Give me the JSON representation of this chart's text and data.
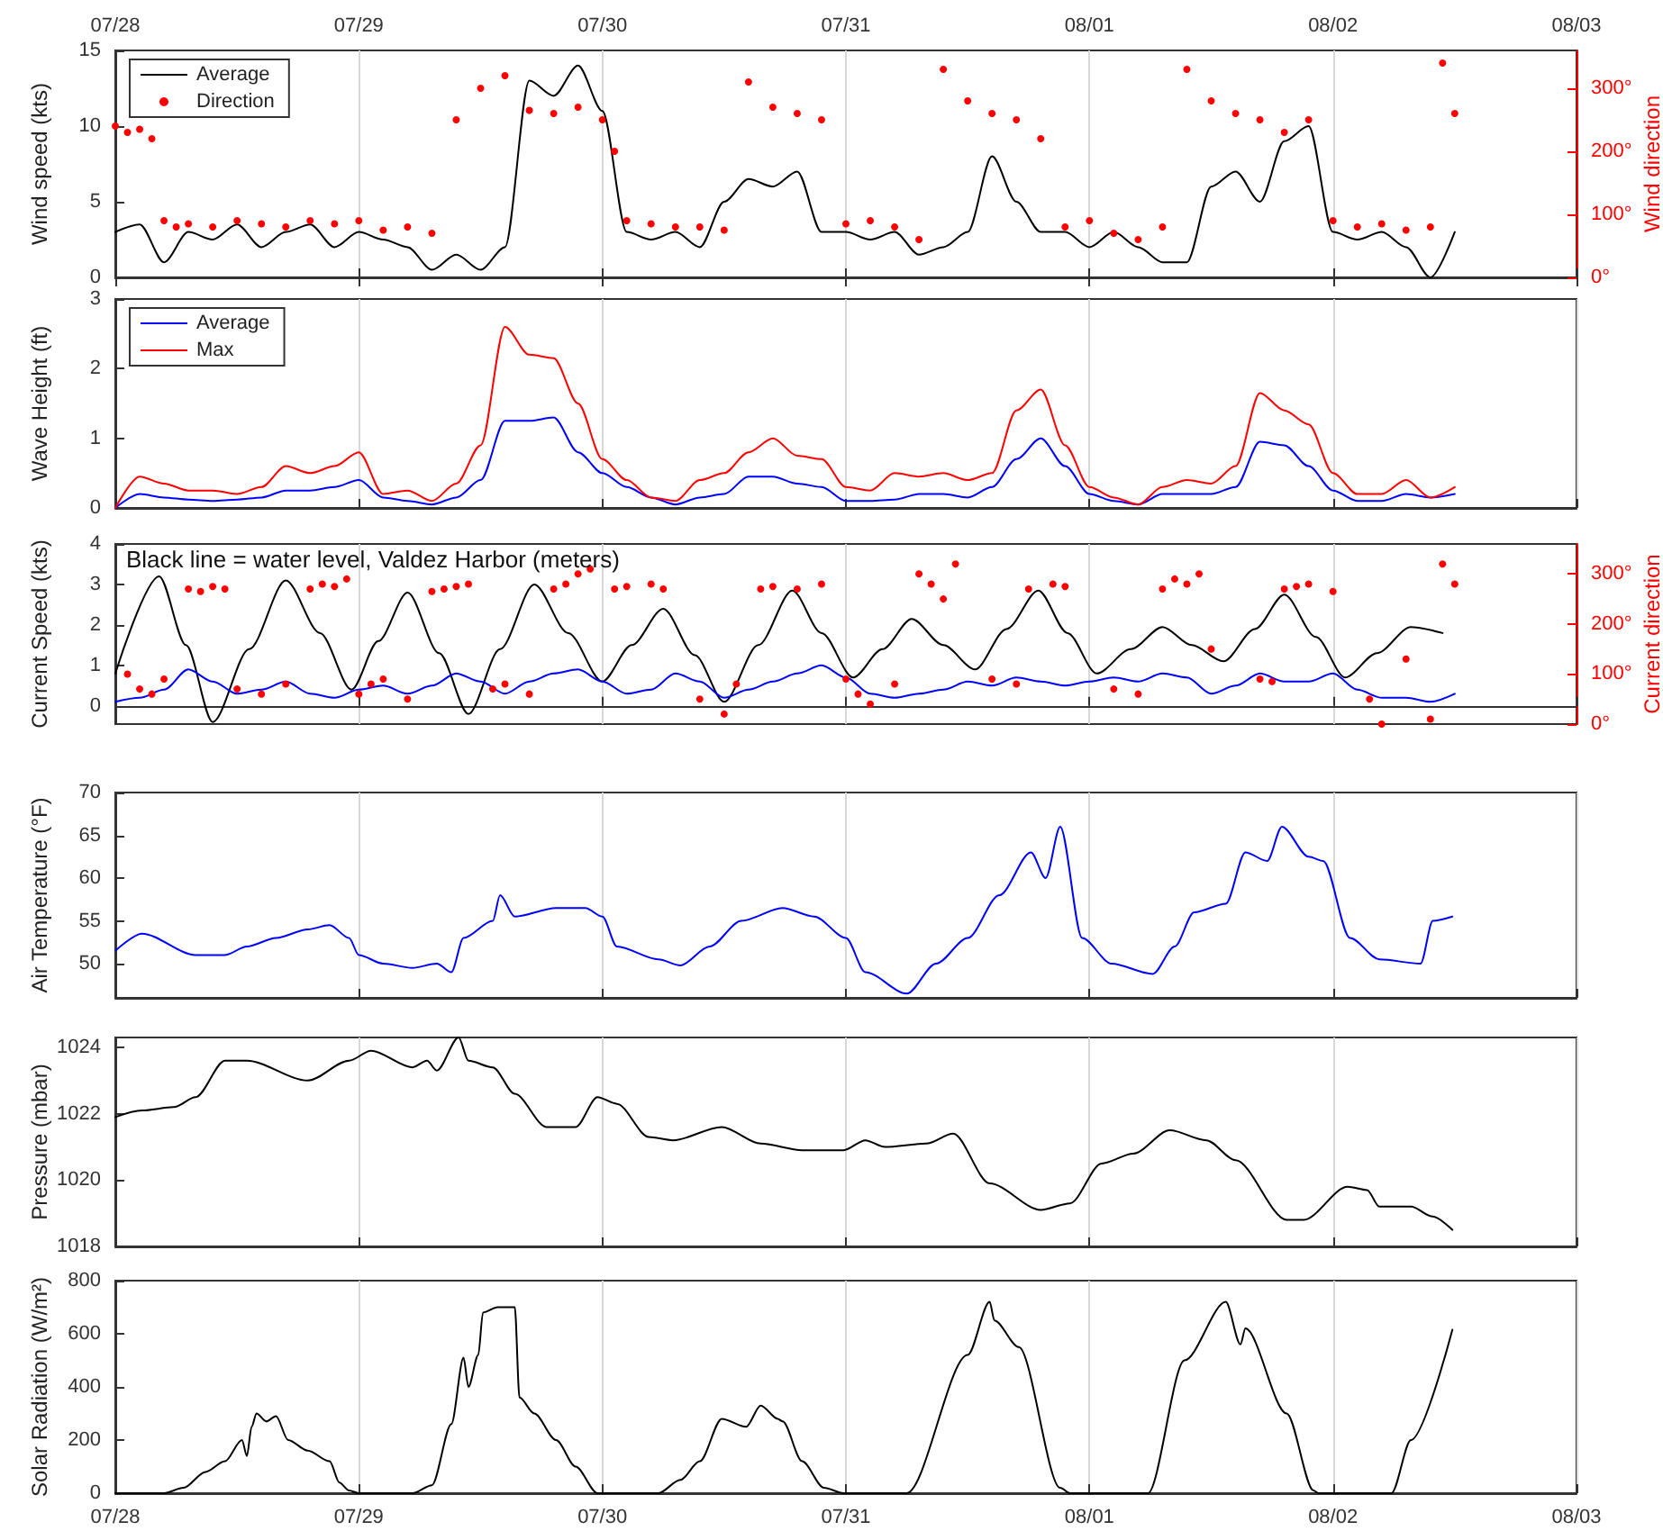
{
  "chart_data": [
    {
      "type": "line",
      "ylabel": "Wind speed (kts)",
      "y2label": "Wind direction",
      "xlim": [
        "--07-28",
        "--08-03"
      ],
      "xticks": [
        {
          "value": "--07-28",
          "label": null
        },
        {
          "value": "--07-29",
          "label": null
        },
        {
          "value": "--07-30",
          "label": null
        },
        {
          "value": "--07-31",
          "label": null
        },
        {
          "value": "--08-01",
          "label": null
        },
        {
          "value": "--08-02",
          "label": null
        },
        {
          "value": "--08-03",
          "label": null
        }
      ],
      "x2lim": [
        "--07-28",
        "--08-03"
      ],
      "x2ticks": [
        {
          "value": "--07-28",
          "label": "07/28"
        },
        {
          "value": "--07-29",
          "label": "07/29"
        },
        {
          "value": "--07-30",
          "label": "07/30"
        },
        {
          "value": "--07-31",
          "label": "07/31"
        },
        {
          "value": "--08-01",
          "label": "08/01"
        },
        {
          "value": "--08-02",
          "label": "08/02"
        },
        {
          "value": "--08-03",
          "label": "08/03"
        }
      ],
      "ylim": [
        0,
        15
      ],
      "yticks": [
        0,
        5,
        10,
        15
      ],
      "y2lim": [
        0,
        360
      ],
      "y2ticks": [
        {
          "value": 0,
          "label": "0°"
        },
        {
          "value": 100,
          "label": "100°"
        },
        {
          "value": 200,
          "label": "200°"
        },
        {
          "value": 300,
          "label": "300°"
        }
      ],
      "grid": "x",
      "legend": "top left",
      "tick_labels": "y",
      "x": [
        "--07-28T00:00",
        "--07-28T02:24",
        "--07-28T04:48",
        "--07-28T07:12",
        "--07-28T09:36",
        "--07-28T12:00",
        "--07-28T14:24",
        "--07-28T16:48",
        "--07-28T19:12",
        "--07-28T21:36",
        "--07-29T00:00",
        "--07-29T02:24",
        "--07-29T04:48",
        "--07-29T07:12",
        "--07-29T09:36",
        "--07-29T12:00",
        "--07-29T14:24",
        "--07-29T16:48",
        "--07-29T19:12",
        "--07-29T21:36",
        "--07-30T00:00",
        "--07-30T02:24",
        "--07-30T04:48",
        "--07-30T07:12",
        "--07-30T09:36",
        "--07-30T12:00",
        "--07-30T14:24",
        "--07-30T16:48",
        "--07-30T19:12",
        "--07-30T21:36",
        "--07-31T00:00",
        "--07-31T02:24",
        "--07-31T04:48",
        "--07-31T07:12",
        "--07-31T09:36",
        "--07-31T12:00",
        "--07-31T14:24",
        "--07-31T16:48",
        "--07-31T19:12",
        "--07-31T21:36",
        "--08-01T00:00",
        "--08-01T02:24",
        "--08-01T04:48",
        "--08-01T07:12",
        "--08-01T09:36",
        "--08-01T12:00",
        "--08-01T14:24",
        "--08-01T16:48",
        "--08-01T19:12",
        "--08-01T21:36",
        "--08-02T00:00",
        "--08-02T02:24",
        "--08-02T04:48",
        "--08-02T07:12",
        "--08-02T09:36",
        "--08-02T12:00"
      ],
      "series": [
        {
          "name": "Average",
          "color": "#000000",
          "values": [
            3,
            3.5,
            1,
            3,
            2.5,
            3.5,
            2,
            3,
            3.5,
            2,
            3,
            2.5,
            2,
            0.5,
            1.5,
            0.5,
            2,
            13,
            12,
            14,
            11,
            3,
            2.5,
            3,
            2,
            5,
            6.5,
            6,
            7,
            3,
            3,
            2.5,
            3,
            1.5,
            2,
            3,
            8,
            5,
            3,
            3,
            2,
            3,
            2,
            1,
            1,
            6,
            7,
            5,
            9,
            10,
            3,
            2.5,
            3,
            2,
            0,
            3
          ]
        },
        {
          "name": "Direction",
          "type": "scatter",
          "marker": "circle",
          "axis": "y2",
          "color": "#ff0000",
          "x": [
            "--07-28T00:00",
            "--07-28T01:12",
            "--07-28T02:24",
            "--07-28T03:36",
            "--07-28T04:48",
            "--07-28T06:00",
            "--07-28T07:12",
            "--07-28T09:36",
            "--07-28T12:00",
            "--07-28T14:24",
            "--07-28T16:48",
            "--07-28T19:12",
            "--07-28T21:36",
            "--07-29T00:00",
            "--07-29T02:24",
            "--07-29T04:48",
            "--07-29T07:12",
            "--07-29T09:36",
            "--07-29T12:00",
            "--07-29T14:24",
            "--07-29T16:48",
            "--07-29T19:12",
            "--07-29T21:36",
            "--07-30T00:00",
            "--07-30T01:12",
            "--07-30T02:24",
            "--07-30T04:48",
            "--07-30T07:12",
            "--07-30T09:36",
            "--07-30T12:00",
            "--07-30T14:24",
            "--07-30T16:48",
            "--07-30T19:12",
            "--07-30T21:36",
            "--07-31T00:00",
            "--07-31T02:24",
            "--07-31T04:48",
            "--07-31T07:12",
            "--07-31T09:36",
            "--07-31T12:00",
            "--07-31T14:24",
            "--07-31T16:48",
            "--07-31T19:12",
            "--07-31T21:36",
            "--08-01T00:00",
            "--08-01T02:24",
            "--08-01T04:48",
            "--08-01T07:12",
            "--08-01T09:36",
            "--08-01T12:00",
            "--08-01T14:24",
            "--08-01T16:48",
            "--08-01T19:12",
            "--08-01T21:36",
            "--08-02T00:00",
            "--08-02T02:24",
            "--08-02T04:48",
            "--08-02T07:12",
            "--08-02T09:36",
            "--08-02T10:48",
            "--08-02T12:00"
          ],
          "values": [
            240,
            230,
            235,
            220,
            90,
            80,
            85,
            80,
            90,
            85,
            80,
            90,
            85,
            90,
            75,
            80,
            70,
            250,
            300,
            320,
            265,
            260,
            270,
            250,
            200,
            90,
            85,
            80,
            80,
            75,
            310,
            270,
            260,
            250,
            85,
            90,
            80,
            60,
            330,
            280,
            260,
            250,
            220,
            80,
            90,
            70,
            60,
            80,
            330,
            280,
            260,
            250,
            230,
            250,
            90,
            80,
            85,
            75,
            80,
            340,
            260
          ]
        }
      ]
    },
    {
      "type": "line",
      "ylabel": "Wave Height (ft)",
      "xlim": [
        "--07-28",
        "--08-03"
      ],
      "xticks": [
        {
          "value": "--07-28",
          "label": null
        },
        {
          "value": "--07-29",
          "label": null
        },
        {
          "value": "--07-30",
          "label": null
        },
        {
          "value": "--07-31",
          "label": null
        },
        {
          "value": "--08-01",
          "label": null
        },
        {
          "value": "--08-02",
          "label": null
        },
        {
          "value": "--08-03",
          "label": null
        }
      ],
      "ylim": [
        0,
        3
      ],
      "yticks": [
        0,
        1,
        2,
        3
      ],
      "grid": "x",
      "legend": "top left",
      "tick_labels": "y",
      "x": [
        "--07-28T00:00",
        "--07-28T02:24",
        "--07-28T04:48",
        "--07-28T07:12",
        "--07-28T09:36",
        "--07-28T12:00",
        "--07-28T14:24",
        "--07-28T16:48",
        "--07-28T19:12",
        "--07-28T21:36",
        "--07-29T00:00",
        "--07-29T02:24",
        "--07-29T04:48",
        "--07-29T07:12",
        "--07-29T09:36",
        "--07-29T12:00",
        "--07-29T14:24",
        "--07-29T16:48",
        "--07-29T19:12",
        "--07-29T21:36",
        "--07-30T00:00",
        "--07-30T02:24",
        "--07-30T04:48",
        "--07-30T07:12",
        "--07-30T09:36",
        "--07-30T12:00",
        "--07-30T14:24",
        "--07-30T16:48",
        "--07-30T19:12",
        "--07-30T21:36",
        "--07-31T00:00",
        "--07-31T02:24",
        "--07-31T04:48",
        "--07-31T07:12",
        "--07-31T09:36",
        "--07-31T12:00",
        "--07-31T14:24",
        "--07-31T16:48",
        "--07-31T19:12",
        "--07-31T21:36",
        "--08-01T00:00",
        "--08-01T02:24",
        "--08-01T04:48",
        "--08-01T07:12",
        "--08-01T09:36",
        "--08-01T12:00",
        "--08-01T14:24",
        "--08-01T16:48",
        "--08-01T19:12",
        "--08-01T21:36",
        "--08-02T00:00",
        "--08-02T02:24",
        "--08-02T04:48",
        "--08-02T07:12",
        "--08-02T09:36",
        "--08-02T12:00"
      ],
      "series": [
        {
          "name": "Average",
          "color": "#0000ff",
          "values": [
            0,
            0.2,
            0.15,
            0.12,
            0.1,
            0.12,
            0.15,
            0.25,
            0.25,
            0.3,
            0.4,
            0.15,
            0.1,
            0.05,
            0.15,
            0.4,
            1.25,
            1.25,
            1.3,
            0.8,
            0.5,
            0.3,
            0.15,
            0.05,
            0.15,
            0.2,
            0.45,
            0.45,
            0.35,
            0.3,
            0.1,
            0.1,
            0.12,
            0.2,
            0.2,
            0.15,
            0.3,
            0.7,
            1.0,
            0.6,
            0.2,
            0.1,
            0.05,
            0.2,
            0.2,
            0.2,
            0.3,
            0.95,
            0.9,
            0.6,
            0.25,
            0.1,
            0.1,
            0.2,
            0.15,
            0.2
          ]
        },
        {
          "name": "Max",
          "color": "#ff0000",
          "values": [
            0,
            0.45,
            0.35,
            0.25,
            0.25,
            0.2,
            0.3,
            0.6,
            0.5,
            0.6,
            0.8,
            0.2,
            0.25,
            0.1,
            0.35,
            0.9,
            2.6,
            2.2,
            2.15,
            1.5,
            0.7,
            0.4,
            0.15,
            0.1,
            0.4,
            0.5,
            0.8,
            1.0,
            0.75,
            0.7,
            0.3,
            0.25,
            0.5,
            0.45,
            0.5,
            0.4,
            0.5,
            1.4,
            1.7,
            0.9,
            0.3,
            0.15,
            0.05,
            0.3,
            0.4,
            0.35,
            0.6,
            1.65,
            1.4,
            1.2,
            0.5,
            0.2,
            0.2,
            0.4,
            0.15,
            0.3
          ]
        }
      ]
    },
    {
      "type": "line",
      "ylabel": "Current Speed (kts)",
      "y2label": "Current direction",
      "annotations": [
        "Black line = water level, Valdez Harbor (meters)"
      ],
      "xlim": [
        "--07-28",
        "--08-03"
      ],
      "xticks": [
        {
          "value": "--07-28",
          "label": null
        },
        {
          "value": "--07-29",
          "label": null
        },
        {
          "value": "--07-30",
          "label": null
        },
        {
          "value": "--07-31",
          "label": null
        },
        {
          "value": "--08-01",
          "label": null
        },
        {
          "value": "--08-02",
          "label": null
        },
        {
          "value": "--08-03",
          "label": null
        }
      ],
      "ylim": [
        -0.45,
        4
      ],
      "yticks": [
        0,
        1,
        2,
        3,
        4
      ],
      "y2lim": [
        0,
        360
      ],
      "y2ticks": [
        {
          "value": 0,
          "label": "0°"
        },
        {
          "value": 100,
          "label": "100°"
        },
        {
          "value": 200,
          "label": "200°"
        },
        {
          "value": 300,
          "label": "300°"
        }
      ],
      "grid": "x",
      "tick_labels": "y",
      "x": [
        "--07-28T00:00",
        "--07-28T02:24",
        "--07-28T04:48",
        "--07-28T07:12",
        "--07-28T09:36",
        "--07-28T12:00",
        "--07-28T14:24",
        "--07-28T16:48",
        "--07-28T19:12",
        "--07-28T21:36",
        "--07-29T00:00",
        "--07-29T02:24",
        "--07-29T04:48",
        "--07-29T07:12",
        "--07-29T09:36",
        "--07-29T12:00",
        "--07-29T14:24",
        "--07-29T16:48",
        "--07-29T19:12",
        "--07-29T21:36",
        "--07-30T00:00",
        "--07-30T02:24",
        "--07-30T04:48",
        "--07-30T07:12",
        "--07-30T09:36",
        "--07-30T12:00",
        "--07-30T14:24",
        "--07-30T16:48",
        "--07-30T19:12",
        "--07-30T21:36",
        "--07-31T00:00",
        "--07-31T02:24",
        "--07-31T04:48",
        "--07-31T07:12",
        "--07-31T09:36",
        "--07-31T12:00",
        "--07-31T14:24",
        "--07-31T16:48",
        "--07-31T19:12",
        "--07-31T21:36",
        "--08-01T00:00",
        "--08-01T02:24",
        "--08-01T04:48",
        "--08-01T07:12",
        "--08-01T09:36",
        "--08-01T12:00",
        "--08-01T14:24",
        "--08-01T16:48",
        "--08-01T19:12",
        "--08-01T21:36",
        "--08-02T00:00",
        "--08-02T02:24",
        "--08-02T04:48",
        "--08-02T07:12",
        "--08-02T09:36",
        "--08-02T12:00"
      ],
      "series": [
        {
          "type": "scatter",
          "marker": "circle",
          "axis": "y2",
          "color": "#ff0000",
          "x": [
            "--07-28T01:12",
            "--07-28T02:24",
            "--07-28T03:36",
            "--07-28T04:48",
            "--07-28T07:12",
            "--07-28T08:24",
            "--07-28T09:36",
            "--07-28T10:48",
            "--07-28T12:00",
            "--07-28T14:24",
            "--07-28T16:48",
            "--07-28T19:12",
            "--07-28T20:24",
            "--07-28T21:36",
            "--07-28T22:48",
            "--07-29T00:00",
            "--07-29T01:12",
            "--07-29T02:24",
            "--07-29T04:48",
            "--07-29T07:12",
            "--07-29T08:24",
            "--07-29T09:36",
            "--07-29T10:48",
            "--07-29T13:12",
            "--07-29T14:24",
            "--07-29T16:48",
            "--07-29T19:12",
            "--07-29T20:24",
            "--07-29T21:36",
            "--07-29T22:48",
            "--07-30T01:12",
            "--07-30T02:24",
            "--07-30T04:48",
            "--07-30T06:00",
            "--07-30T09:36",
            "--07-30T12:00",
            "--07-30T13:12",
            "--07-30T15:36",
            "--07-30T16:48",
            "--07-30T19:12",
            "--07-30T21:36",
            "--07-31T00:00",
            "--07-31T01:12",
            "--07-31T02:24",
            "--07-31T04:48",
            "--07-31T07:12",
            "--07-31T08:24",
            "--07-31T09:36",
            "--07-31T10:48",
            "--07-31T14:24",
            "--07-31T16:48",
            "--07-31T18:00",
            "--07-31T20:24",
            "--07-31T21:36",
            "--08-01T02:24",
            "--08-01T04:48",
            "--08-01T07:12",
            "--08-01T08:24",
            "--08-01T09:36",
            "--08-01T10:48",
            "--08-01T12:00",
            "--08-01T16:48",
            "--08-01T18:00",
            "--08-01T19:12",
            "--08-01T20:24",
            "--08-01T21:36",
            "--08-02T00:00",
            "--08-02T03:36",
            "--08-02T04:48",
            "--08-02T07:12",
            "--08-02T09:36",
            "--08-02T10:48",
            "--08-02T12:00"
          ],
          "values": [
            100,
            70,
            60,
            90,
            270,
            265,
            275,
            270,
            70,
            60,
            80,
            270,
            280,
            275,
            290,
            60,
            80,
            90,
            50,
            265,
            270,
            275,
            280,
            70,
            80,
            60,
            270,
            280,
            300,
            310,
            270,
            275,
            280,
            270,
            50,
            20,
            80,
            270,
            275,
            270,
            280,
            90,
            60,
            40,
            80,
            300,
            280,
            250,
            320,
            90,
            80,
            270,
            280,
            275,
            70,
            60,
            270,
            290,
            280,
            300,
            150,
            90,
            85,
            270,
            275,
            280,
            265,
            50,
            0,
            130,
            10,
            320,
            280
          ]
        },
        {
          "color": "#000000",
          "x": [
            "--07-28T00:00",
            "--07-28T04:19",
            "--07-28T06:58",
            "--07-28T09:36",
            "--07-28T13:12",
            "--07-28T16:48",
            "--07-28T20:10",
            "--07-28T23:17",
            "--07-29T01:55",
            "--07-29T04:48",
            "--07-29T07:55",
            "--07-29T10:48",
            "--07-29T13:55",
            "--07-29T17:17",
            "--07-29T20:38",
            "--07-30T00:00",
            "--07-30T02:53",
            "--07-30T06:00",
            "--07-30T09:07",
            "--07-30T12:00",
            "--07-30T15:22",
            "--07-30T18:43",
            "--07-30T21:36",
            "--07-31T00:43",
            "--07-31T03:36",
            "--07-31T06:29",
            "--07-31T09:36",
            "--07-31T12:43",
            "--07-31T15:50",
            "--07-31T18:58",
            "--07-31T21:50",
            "--08-01T00:43",
            "--08-01T04:05",
            "--08-01T07:12",
            "--08-01T10:05",
            "--08-01T13:12",
            "--08-01T16:19",
            "--08-01T19:12",
            "--08-01T22:19",
            "--08-02T01:12",
            "--08-02T04:19",
            "--08-02T07:41",
            "--08-02T10:48"
          ],
          "values": [
            0.8,
            3.2,
            1.5,
            -0.4,
            1.4,
            3.1,
            1.8,
            0.4,
            1.6,
            2.8,
            1.3,
            -0.2,
            1.4,
            3.0,
            1.8,
            0.6,
            1.5,
            2.4,
            1.25,
            0.1,
            1.5,
            2.85,
            1.8,
            0.7,
            1.4,
            2.15,
            1.5,
            0.9,
            1.9,
            2.85,
            1.8,
            0.8,
            1.4,
            1.95,
            1.5,
            1.1,
            1.9,
            2.75,
            1.7,
            0.7,
            1.3,
            1.95,
            1.8
          ]
        },
        {
          "color": "#0000ff",
          "values": [
            0.1,
            0.2,
            0.4,
            0.9,
            0.6,
            0.3,
            0.4,
            0.6,
            0.3,
            0.2,
            0.4,
            0.5,
            0.3,
            0.5,
            0.8,
            0.6,
            0.3,
            0.6,
            0.8,
            0.9,
            0.6,
            0.3,
            0.4,
            0.8,
            0.6,
            0.2,
            0.4,
            0.6,
            0.8,
            1.0,
            0.7,
            0.3,
            0.2,
            0.3,
            0.4,
            0.6,
            0.5,
            0.7,
            0.6,
            0.5,
            0.6,
            0.7,
            0.6,
            0.8,
            0.7,
            0.3,
            0.5,
            0.8,
            0.6,
            0.6,
            0.8,
            0.4,
            0.2,
            0.2,
            0.1,
            0.3
          ]
        }
      ]
    },
    {
      "type": "line",
      "ylabel": "Air Temperature (°F)",
      "xlim": [
        "--07-28",
        "--08-03"
      ],
      "xticks": [
        {
          "value": "--07-28",
          "label": null
        },
        {
          "value": "--07-29",
          "label": null
        },
        {
          "value": "--07-30",
          "label": null
        },
        {
          "value": "--07-31",
          "label": null
        },
        {
          "value": "--08-01",
          "label": null
        },
        {
          "value": "--08-02",
          "label": null
        },
        {
          "value": "--08-03",
          "label": null
        }
      ],
      "ylim": [
        46,
        70
      ],
      "yticks": [
        50,
        55,
        60,
        65,
        70
      ],
      "grid": "x",
      "tick_labels": "y",
      "series": [
        {
          "color": "#0000ff",
          "x": [
            "--07-28T00:00",
            "--07-28T02:38",
            "--07-28T07:55",
            "--07-28T10:48",
            "--07-28T12:58",
            "--07-28T15:50",
            "--07-28T18:58",
            "--07-28T21:07",
            "--07-28T23:02",
            "--07-29T00:00",
            "--07-29T02:24",
            "--07-29T05:17",
            "--07-29T07:41",
            "--07-29T09:07",
            "--07-29T10:19",
            "--07-29T13:12",
            "--07-29T13:55",
            "--07-29T15:22",
            "--07-29T19:26",
            "--07-29T22:19",
            "--07-30T00:00",
            "--07-30T01:26",
            "--07-30T05:31",
            "--07-30T07:41",
            "--07-30T10:34",
            "--07-30T13:41",
            "--07-30T17:46",
            "--07-30T20:53",
            "--07-31T00:00",
            "--07-31T01:55",
            "--07-31T06:00",
            "--07-31T08:53",
            "--07-31T12:00",
            "--07-31T15:07",
            "--07-31T18:14",
            "--07-31T19:41",
            "--07-31T21:07",
            "--07-31T23:17",
            "--08-01T02:10",
            "--08-01T06:14",
            "--08-01T08:24",
            "--08-01T10:19",
            "--08-01T13:26",
            "--08-01T15:22",
            "--08-01T17:31",
            "--08-01T18:58",
            "--08-01T21:36",
            "--08-01T23:02",
            "--08-02T01:41",
            "--08-02T04:34",
            "--08-02T08:38",
            "--08-02T09:50",
            "--08-02T11:46"
          ],
          "values": [
            51.5,
            53.5,
            51,
            51,
            52,
            53,
            54,
            54.5,
            53,
            51,
            50,
            49.5,
            50,
            49,
            53,
            55,
            58,
            55.5,
            56.5,
            56.5,
            55.5,
            52,
            50.5,
            49.8,
            52,
            55,
            56.5,
            55.5,
            53,
            49,
            46.5,
            50,
            53,
            58,
            63,
            60,
            66,
            53,
            50,
            48.8,
            52,
            56,
            57,
            63,
            62,
            66,
            62.5,
            62,
            53,
            50.5,
            50,
            55,
            55.5
          ]
        }
      ]
    },
    {
      "type": "line",
      "ylabel": "Pressure (mbar)",
      "xlim": [
        "--07-28",
        "--08-03"
      ],
      "xticks": [
        {
          "value": "--07-28",
          "label": null
        },
        {
          "value": "--07-29",
          "label": null
        },
        {
          "value": "--07-30",
          "label": null
        },
        {
          "value": "--07-31",
          "label": null
        },
        {
          "value": "--08-01",
          "label": null
        },
        {
          "value": "--08-02",
          "label": null
        },
        {
          "value": "--08-03",
          "label": null
        }
      ],
      "ylim": [
        1018,
        1024.3
      ],
      "yticks": [
        1018,
        1020,
        1022,
        1024
      ],
      "grid": "x",
      "tick_labels": "y",
      "series": [
        {
          "color": "#000000",
          "x": [
            "--07-28T00:00",
            "--07-28T02:38",
            "--07-28T05:46",
            "--07-28T07:55",
            "--07-28T10:48",
            "--07-28T12:58",
            "--07-28T18:58",
            "--07-28T23:02",
            "--07-29T01:12",
            "--07-29T05:17",
            "--07-29T06:43",
            "--07-29T07:41",
            "--07-29T09:50",
            "--07-29T10:48",
            "--07-29T13:12",
            "--07-29T15:22",
            "--07-29T18:29",
            "--07-29T21:22",
            "--07-29T23:31",
            "--07-30T01:26",
            "--07-30T04:34",
            "--07-30T06:58",
            "--07-30T11:46",
            "--07-30T15:36",
            "--07-30T19:41",
            "--07-30T23:46",
            "--07-31T01:55",
            "--07-31T03:50",
            "--07-31T07:55",
            "--07-31T10:34",
            "--07-31T14:10",
            "--07-31T19:12",
            "--07-31T22:05",
            "--08-01T01:12",
            "--08-01T04:19",
            "--08-01T07:55",
            "--08-01T11:31",
            "--08-01T14:24",
            "--08-01T19:26",
            "--08-01T21:07",
            "--08-02T01:26",
            "--08-02T03:22",
            "--08-02T04:34",
            "--08-02T07:41",
            "--08-02T09:50",
            "--08-02T11:46"
          ],
          "values": [
            1021.9,
            1022.1,
            1022.2,
            1022.5,
            1023.6,
            1023.6,
            1023.0,
            1023.6,
            1023.9,
            1023.4,
            1023.6,
            1023.3,
            1024.3,
            1023.6,
            1023.4,
            1022.6,
            1021.6,
            1021.6,
            1022.5,
            1022.3,
            1021.3,
            1021.2,
            1021.6,
            1021.1,
            1020.9,
            1020.9,
            1021.2,
            1021.0,
            1021.1,
            1021.4,
            1019.9,
            1019.1,
            1019.3,
            1020.5,
            1020.8,
            1021.5,
            1021.2,
            1020.6,
            1018.8,
            1018.8,
            1019.8,
            1019.7,
            1019.2,
            1019.2,
            1018.9,
            1018.5
          ]
        }
      ]
    },
    {
      "type": "line",
      "ylabel": "Solar Radiation (W/m²)",
      "xlim": [
        "--07-28",
        "--08-03"
      ],
      "xticks": [
        {
          "value": "--07-28",
          "label": "07/28"
        },
        {
          "value": "--07-29",
          "label": "07/29"
        },
        {
          "value": "--07-30",
          "label": "07/30"
        },
        {
          "value": "--07-31",
          "label": "07/31"
        },
        {
          "value": "--08-01",
          "label": "08/01"
        },
        {
          "value": "--08-02",
          "label": "08/02"
        },
        {
          "value": "--08-03",
          "label": "08/03"
        }
      ],
      "ylim": [
        0,
        800
      ],
      "yticks": [
        0,
        200,
        400,
        600,
        800
      ],
      "grid": "x",
      "series": [
        {
          "color": "#000000",
          "x": [
            "--07-28T00:00",
            "--07-28T04:48",
            "--07-28T06:43",
            "--07-28T08:53",
            "--07-28T10:48",
            "--07-28T12:29",
            "--07-28T12:58",
            "--07-28T13:26",
            "--07-28T13:55",
            "--07-28T14:53",
            "--07-28T15:50",
            "--07-28T17:02",
            "--07-28T18:58",
            "--07-28T21:07",
            "--07-28T22:05",
            "--07-28T23:02",
            "--07-29T00:00",
            "--07-29T05:17",
            "--07-29T07:12",
            "--07-29T09:07",
            "--07-29T10:19",
            "--07-29T10:48",
            "--07-29T11:46",
            "--07-29T12:14",
            "--07-29T13:41",
            "--07-29T15:22",
            "--07-29T15:50",
            "--07-29T17:17",
            "--07-29T19:26",
            "--07-29T21:22",
            "--07-29T23:31",
            "--07-30T05:31",
            "--07-30T07:41",
            "--07-30T09:36",
            "--07-30T11:46",
            "--07-30T14:10",
            "--07-30T15:36",
            "--07-30T17:17",
            "--07-30T17:46",
            "--07-30T19:41",
            "--07-30T21:50",
            "--07-30T23:46",
            "--07-31T06:00",
            "--07-31T12:00",
            "--07-31T14:10",
            "--07-31T14:38",
            "--07-31T17:02",
            "--07-31T21:07",
            "--07-31T22:05",
            "--08-01T05:46",
            "--08-01T09:22",
            "--08-01T13:26",
            "--08-01T14:53",
            "--08-01T15:22",
            "--08-01T19:26",
            "--08-01T22:05",
            "--08-01T22:34",
            "--08-02T05:46",
            "--08-02T07:41",
            "--08-02T11:46"
          ],
          "values": [
            0,
            0,
            20,
            80,
            120,
            200,
            140,
            250,
            300,
            270,
            290,
            200,
            160,
            120,
            40,
            10,
            0,
            0,
            30,
            260,
            510,
            400,
            520,
            680,
            700,
            700,
            360,
            300,
            200,
            100,
            0,
            0,
            50,
            120,
            280,
            250,
            330,
            280,
            270,
            120,
            20,
            0,
            0,
            520,
            720,
            650,
            550,
            20,
            0,
            0,
            500,
            720,
            560,
            620,
            300,
            10,
            0,
            0,
            200,
            615
          ]
        }
      ]
    }
  ]
}
